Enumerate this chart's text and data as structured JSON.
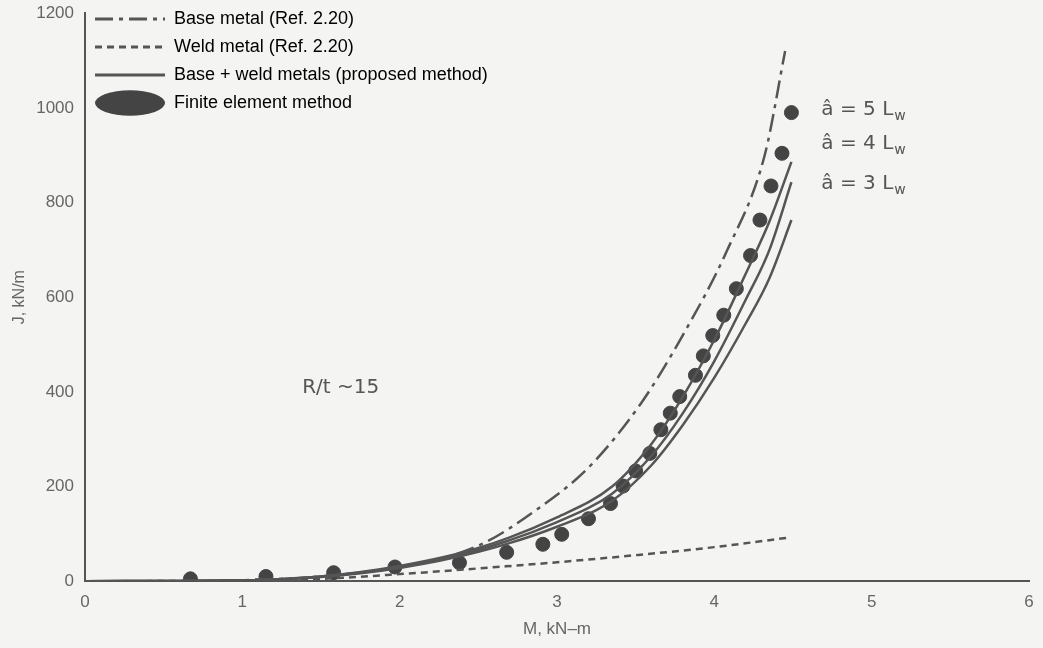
{
  "chart_data": {
    "type": "line",
    "xlabel": "M, kN–m",
    "ylabel": "J, kN/m",
    "xlim": [
      0,
      6
    ],
    "ylim": [
      0,
      1200
    ],
    "xticks": [
      0,
      1,
      2,
      3,
      4,
      5,
      6
    ],
    "yticks": [
      0,
      200,
      400,
      600,
      800,
      1000,
      1200
    ],
    "grid": false,
    "legend": "top left",
    "series": [
      {
        "name": "Base metal (Ref. 2.20)",
        "color": "#555555",
        "line_style": "dashed",
        "marker": "none",
        "x": [
          0,
          0.5,
          1,
          1.5,
          2,
          2.5,
          2.87,
          3.2,
          3.53,
          3.8,
          4.08,
          4.32,
          4.45
        ],
        "values": [
          0,
          0,
          2,
          10,
          30,
          75,
          151,
          240,
          374,
          520,
          698,
          900,
          1120
        ]
      },
      {
        "name": "Weld metal (Ref. 2.20)",
        "color": "#555555",
        "line_style": "dotted",
        "marker": "none",
        "x": [
          0,
          1,
          1.5,
          2,
          2.5,
          3,
          3.5,
          4,
          4.47
        ],
        "values": [
          0,
          1,
          5,
          15,
          27,
          40,
          55,
          72,
          92
        ]
      },
      {
        "name": "Base + weld metals (proposed method)",
        "color": "#555555",
        "line_style": "solid",
        "marker": "none",
        "x": [
          0,
          1,
          1.5,
          2,
          2.5,
          3,
          3.35,
          3.6,
          3.8,
          4,
          4.2,
          4.35,
          4.49
        ],
        "values": [
          0,
          2,
          10,
          32,
          70,
          135,
          200,
          290,
          390,
          510,
          650,
          760,
          886
        ]
      },
      {
        "color": "#555555",
        "line_style": "solid",
        "marker": "none",
        "x": [
          0,
          1,
          1.5,
          2,
          2.5,
          3,
          3.35,
          3.6,
          3.8,
          4,
          4.2,
          4.35,
          4.49
        ],
        "values": [
          0,
          2,
          10,
          30,
          66,
          125,
          185,
          265,
          355,
          465,
          595,
          700,
          843
        ]
      },
      {
        "color": "#555555",
        "line_style": "solid",
        "marker": "none",
        "x": [
          0,
          1,
          1.5,
          2,
          2.5,
          3,
          3.35,
          3.6,
          3.8,
          4,
          4.2,
          4.35,
          4.49
        ],
        "values": [
          0,
          2,
          9,
          28,
          62,
          115,
          170,
          245,
          330,
          430,
          545,
          640,
          763
        ]
      },
      {
        "name": "Finite element method",
        "type": "scatter",
        "color": "#444444",
        "marker": "circle",
        "x": [
          0.67,
          1.15,
          1.58,
          1.97,
          2.38,
          2.68,
          2.91,
          3.03,
          3.2,
          3.34,
          3.42,
          3.5,
          3.59,
          3.66,
          3.72,
          3.78,
          3.88,
          3.93,
          3.99,
          4.06,
          4.14,
          4.23,
          4.29,
          4.36,
          4.43,
          4.49
        ],
        "values": [
          5,
          10,
          18,
          30,
          39,
          61,
          78,
          99,
          132,
          164,
          201,
          233,
          270,
          320,
          355,
          390,
          435,
          476,
          519,
          562,
          618,
          688,
          763,
          835,
          904,
          990
        ]
      }
    ],
    "annotations": [
      "â = 5 L$_{w}$",
      "â = 4 L$_{w}$",
      "â = 3 L$_{w}$",
      "R/t ~15"
    ]
  }
}
